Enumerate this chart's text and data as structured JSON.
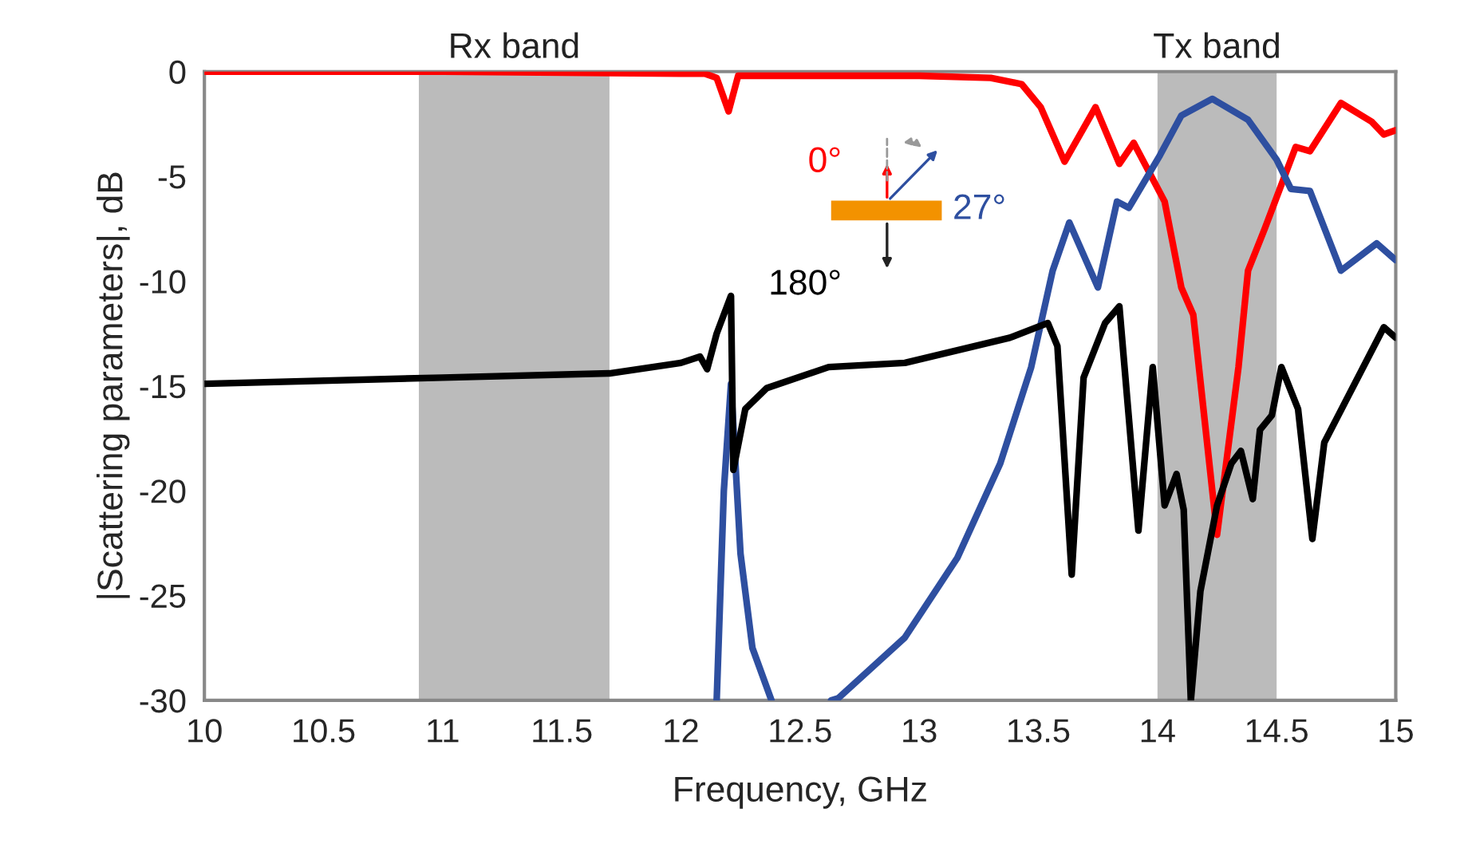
{
  "chart_data": {
    "type": "line",
    "xlabel": "Frequency, GHz",
    "ylabel": "|Scattering parameters|, dB",
    "xlim": [
      10,
      15
    ],
    "ylim": [
      -30,
      0
    ],
    "xticks": [
      10,
      10.5,
      11,
      11.5,
      12,
      12.5,
      13,
      13.5,
      14,
      14.5,
      15
    ],
    "yticks": [
      0,
      -5,
      -10,
      -15,
      -20,
      -25,
      -30
    ],
    "grid": false,
    "legend": "top",
    "line_style": "solid",
    "marker": "none",
    "bands": [
      {
        "axis": "x",
        "from": 10.9,
        "to": 11.7,
        "label": "Rx band",
        "color": "#bbbbbb"
      },
      {
        "axis": "x",
        "from": 14.0,
        "to": 14.5,
        "label": "Tx band",
        "color": "#bbbbbb"
      }
    ],
    "series": [
      {
        "name": "0°",
        "color": "#ff0000",
        "x": [
          10,
          11,
          12,
          12.1,
          12.15,
          12.2,
          12.24,
          13.0,
          13.3,
          13.43,
          13.51,
          13.61,
          13.74,
          13.84,
          13.9,
          14.03,
          14.1,
          14.15,
          14.25,
          14.34,
          14.38,
          14.45,
          14.58,
          14.64,
          14.77,
          14.9,
          14.95,
          15
        ],
        "values": [
          0,
          0,
          -0.1,
          -0.1,
          -0.3,
          -1.9,
          -0.2,
          -0.2,
          -0.3,
          -0.6,
          -1.7,
          -4.3,
          -1.7,
          -4.4,
          -3.4,
          -6.2,
          -10.3,
          -11.6,
          -22.1,
          -14.1,
          -9.5,
          -7.5,
          -3.6,
          -3.8,
          -1.5,
          -2.4,
          -3.0,
          -2.8
        ]
      },
      {
        "name": "27°",
        "color": "#2e4fa0",
        "x": [
          12.15,
          12.18,
          12.21,
          12.25,
          12.3,
          12.38,
          12.5,
          12.63,
          12.66,
          12.94,
          13.16,
          13.34,
          13.47,
          13.56,
          13.63,
          13.75,
          13.83,
          13.88,
          14.01,
          14.1,
          14.23,
          14.38,
          14.5,
          14.56,
          14.64,
          14.77,
          14.92,
          15
        ],
        "values": [
          -30,
          -20,
          -14.9,
          -23,
          -27.5,
          -30,
          null,
          -30,
          -29.9,
          -27.0,
          -23.2,
          -18.7,
          -14.1,
          -9.5,
          -7.2,
          -10.3,
          -6.2,
          -6.5,
          -4.0,
          -2.1,
          -1.3,
          -2.3,
          -4.2,
          -5.6,
          -5.7,
          -9.5,
          -8.2,
          -9.0
        ]
      },
      {
        "name": "180°",
        "color": "#000000",
        "x": [
          10,
          11,
          11.7,
          12.0,
          12.08,
          12.11,
          12.15,
          12.21,
          12.22,
          12.27,
          12.36,
          12.62,
          12.94,
          13.38,
          13.54,
          13.58,
          13.64,
          13.69,
          13.78,
          13.84,
          13.92,
          13.98,
          14.03,
          14.08,
          14.11,
          14.14,
          14.18,
          14.25,
          14.31,
          14.35,
          14.4,
          14.43,
          14.48,
          14.52,
          14.59,
          14.65,
          14.7,
          14.95,
          15
        ],
        "values": [
          -14.9,
          -14.6,
          -14.4,
          -13.9,
          -13.6,
          -14.2,
          -12.5,
          -10.7,
          -19.0,
          -16.1,
          -15.1,
          -14.1,
          -13.9,
          -12.7,
          -12.0,
          -13.1,
          -24.0,
          -14.6,
          -12.0,
          -11.2,
          -21.9,
          -14.1,
          -20.7,
          -19.2,
          -20.9,
          -30,
          -24.8,
          -20.7,
          -18.7,
          -18.1,
          -20.4,
          -17.1,
          -16.4,
          -14.1,
          -16.1,
          -22.3,
          -17.7,
          -12.2,
          -12.7
        ]
      }
    ]
  }
}
